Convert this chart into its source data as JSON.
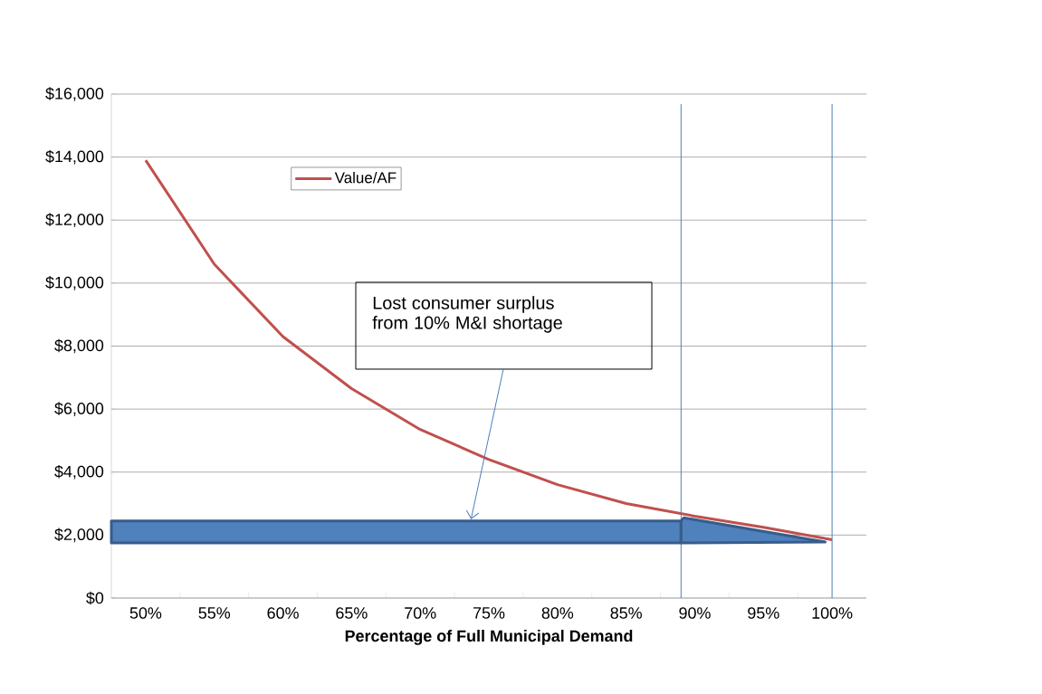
{
  "chart_data": {
    "type": "line",
    "xlabel": "Percentage of Full Municipal Demand",
    "x": [
      50,
      55,
      60,
      65,
      70,
      75,
      80,
      85,
      90,
      95,
      100
    ],
    "series": [
      {
        "name": "Value/AF",
        "color": "#c0504d",
        "values": [
          13900,
          10600,
          8300,
          6650,
          5350,
          4400,
          3600,
          3000,
          2600,
          2250,
          1850
        ]
      }
    ],
    "xlim": [
      47.5,
      102.5
    ],
    "xticks": [
      {
        "value": 50,
        "label": "50%"
      },
      {
        "value": 55,
        "label": "55%"
      },
      {
        "value": 60,
        "label": "60%"
      },
      {
        "value": 65,
        "label": "65%"
      },
      {
        "value": 70,
        "label": "70%"
      },
      {
        "value": 75,
        "label": "75%"
      },
      {
        "value": 80,
        "label": "80%"
      },
      {
        "value": 85,
        "label": "85%"
      },
      {
        "value": 90,
        "label": "90%"
      },
      {
        "value": 95,
        "label": "95%"
      },
      {
        "value": 100,
        "label": "100%"
      }
    ],
    "ylim": [
      0,
      16000
    ],
    "yticks": [
      {
        "value": 0,
        "label": "$0"
      },
      {
        "value": 2000,
        "label": "$2,000"
      },
      {
        "value": 4000,
        "label": "$4,000"
      },
      {
        "value": 6000,
        "label": "$6,000"
      },
      {
        "value": 8000,
        "label": "$8,000"
      },
      {
        "value": 10000,
        "label": "$10,000"
      },
      {
        "value": 12000,
        "label": "$12,000"
      },
      {
        "value": 14000,
        "label": "$14,000"
      },
      {
        "value": 16000,
        "label": "$16,000"
      }
    ],
    "grid": "y",
    "legend": "top left",
    "marker": "none",
    "line_style": "solid",
    "ref_lines": [
      {
        "axis": "x",
        "value": 89,
        "color": "#4a7ebb"
      },
      {
        "axis": "x",
        "value": 100,
        "color": "#4a7ebb"
      }
    ],
    "annotations": [
      "Lost consumer surplus from 10% M&I shortage"
    ]
  }
}
